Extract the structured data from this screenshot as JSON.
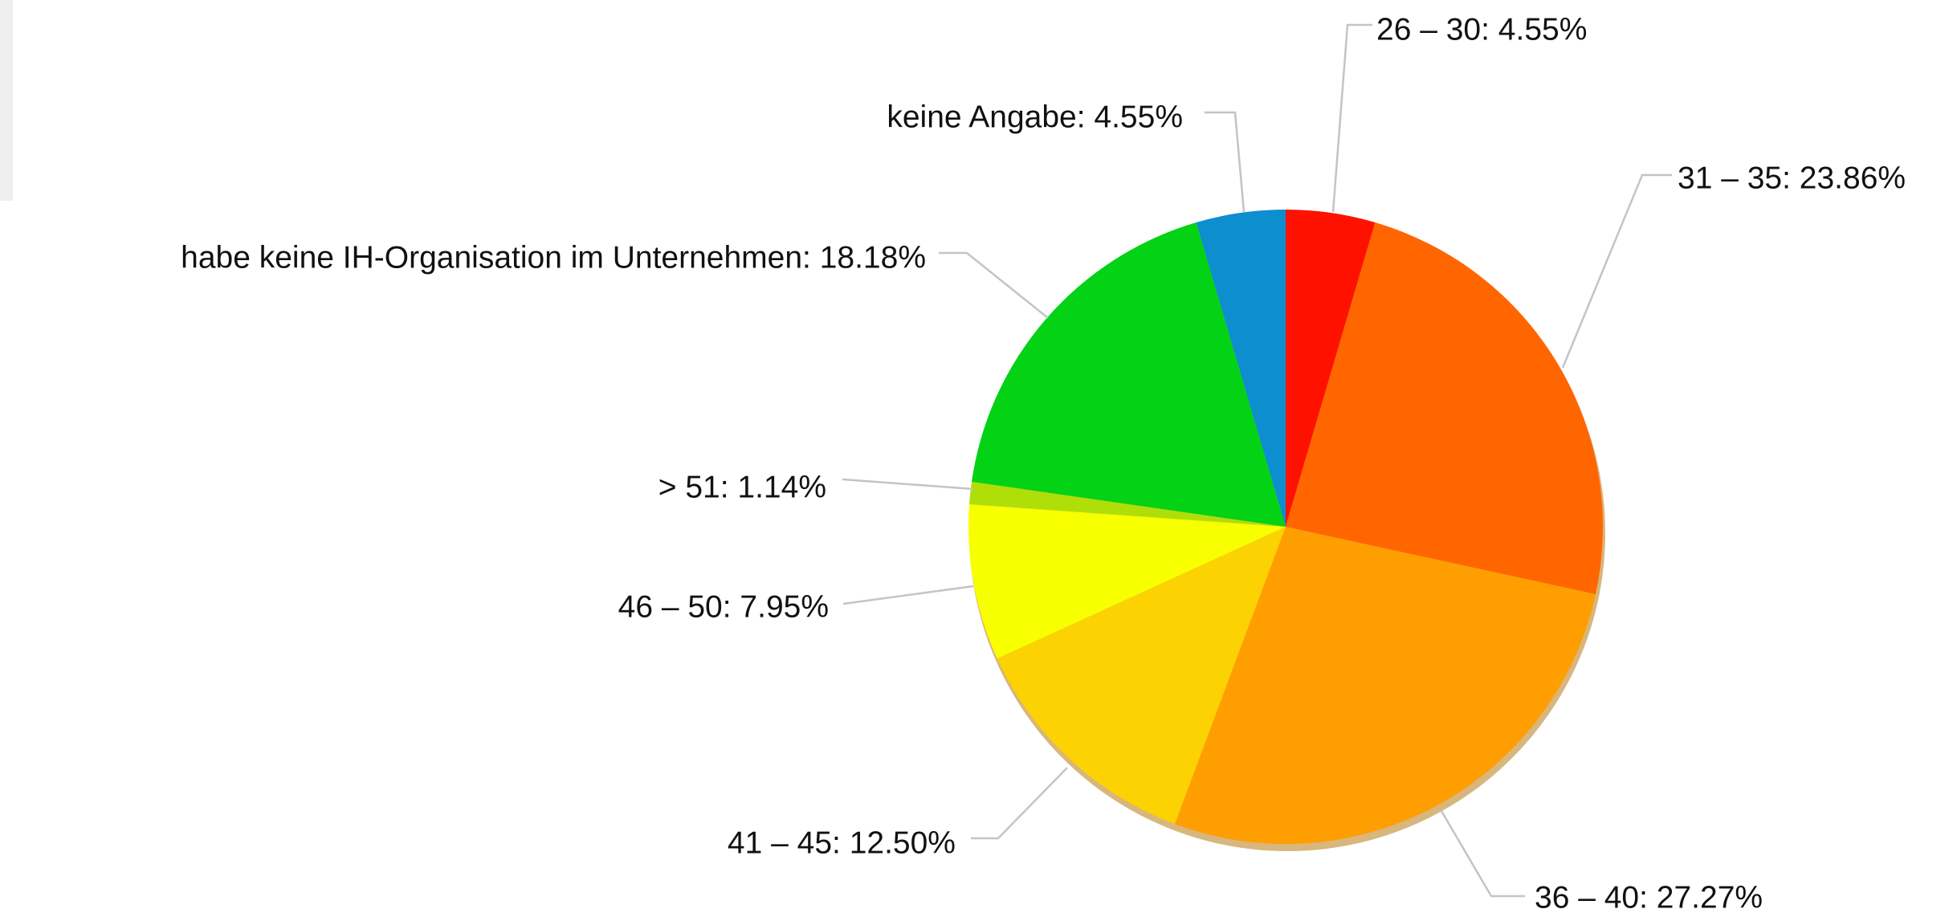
{
  "chart_data": {
    "type": "pie",
    "values": [
      4.55,
      23.86,
      27.27,
      12.5,
      7.95,
      1.14,
      18.18,
      4.55
    ],
    "value_labels": [
      "26 – 30: 4.55%",
      "31 – 35: 23.86%",
      "36 – 40: 27.27%",
      "41 – 45: 12.50%",
      "46 – 50: 7.95%",
      "> 51: 1.14%",
      "habe keine IH-Organisation im Unternehmen: 18.18%",
      "keine Angabe: 4.55%"
    ],
    "colors": [
      "#ff1100",
      "#ff6600",
      "#ff9e01",
      "#fcd202",
      "#f8ff01",
      "#b0de09",
      "#04d215",
      "#0d8ecf"
    ]
  }
}
